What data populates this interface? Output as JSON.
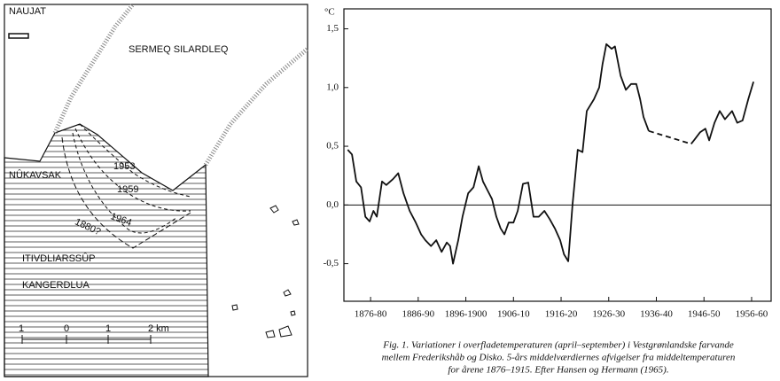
{
  "map": {
    "place_names": [
      "NAUJAT",
      "SERMEQ SILARDLEQ",
      "NÛKAVSAK",
      "ITIVDLIARSSÛP",
      "KANGERDLUA"
    ],
    "front_years": [
      "1953",
      "1959",
      "1964",
      "1880?"
    ],
    "scale_labels": [
      "1",
      "0",
      "1",
      "2 km"
    ]
  },
  "chart_data": {
    "type": "line",
    "y_label": "°C",
    "xlim": [
      1872.4,
      1962.1
    ],
    "ylim": [
      -0.82,
      1.67
    ],
    "xticks": [
      {
        "value": 1878,
        "label": "1876-80"
      },
      {
        "value": 1888,
        "label": "1886-90"
      },
      {
        "value": 1898,
        "label": "1896-1900"
      },
      {
        "value": 1908,
        "label": "1906-10"
      },
      {
        "value": 1918,
        "label": "1916-20"
      },
      {
        "value": 1928,
        "label": "1926-30"
      },
      {
        "value": 1938,
        "label": "1936-40"
      },
      {
        "value": 1948,
        "label": "1946-50"
      },
      {
        "value": 1958,
        "label": "1956-60"
      }
    ],
    "yticks": [
      {
        "value": 1.5,
        "label": "1,5"
      },
      {
        "value": 1.0,
        "label": "1,0"
      },
      {
        "value": 0.5,
        "label": "0,5"
      },
      {
        "value": 0.0,
        "label": "0,0"
      },
      {
        "value": -0.5,
        "label": "-0,5"
      }
    ],
    "reference_line": 0,
    "series": [
      {
        "color": "#111111",
        "style": "solid",
        "x": [
          1873.2,
          1874.1,
          1875.0,
          1876.0,
          1876.9,
          1877.8,
          1878.6,
          1879.3,
          1880.4,
          1881.3,
          1882.7,
          1883.8,
          1884.9,
          1886.2,
          1887.5,
          1888.6,
          1889.5,
          1890.7,
          1891.8,
          1892.9,
          1894.0,
          1894.7,
          1895.3,
          1896.4,
          1897.3,
          1898.5,
          1899.6,
          1900.7,
          1901.6,
          1902.6,
          1903.5,
          1904.4,
          1905.3,
          1906.1,
          1907.0,
          1908.0,
          1908.9,
          1910.0,
          1911.1,
          1912.2,
          1913.3,
          1914.5,
          1915.6,
          1916.7,
          1917.8,
          1918.6,
          1919.5,
          1920.4,
          1921.5,
          1922.5,
          1923.4,
          1924.9,
          1926.0,
          1926.7,
          1927.5,
          1928.6,
          1929.3,
          1930.5,
          1931.6,
          1932.7,
          1933.8,
          1934.6,
          1935.3,
          1936.4
        ],
        "values": [
          0.47,
          0.43,
          0.2,
          0.15,
          -0.1,
          -0.14,
          -0.05,
          -0.1,
          0.2,
          0.17,
          0.22,
          0.27,
          0.1,
          -0.05,
          -0.15,
          -0.25,
          -0.3,
          -0.35,
          -0.3,
          -0.4,
          -0.32,
          -0.35,
          -0.5,
          -0.3,
          -0.1,
          0.1,
          0.15,
          0.33,
          0.2,
          0.12,
          0.05,
          -0.1,
          -0.2,
          -0.25,
          -0.15,
          -0.15,
          -0.05,
          0.18,
          0.19,
          -0.1,
          -0.1,
          -0.05,
          -0.12,
          -0.2,
          -0.3,
          -0.42,
          -0.48,
          0.0,
          0.47,
          0.45,
          0.8,
          0.9,
          1.0,
          1.2,
          1.37,
          1.33,
          1.35,
          1.1,
          0.98,
          1.03,
          1.03,
          0.9,
          0.75,
          0.63
        ]
      },
      {
        "color": "#111111",
        "style": "dashed",
        "x": [
          1936.4,
          1945.3
        ],
        "values": [
          0.63,
          0.52
        ]
      },
      {
        "color": "#111111",
        "style": "solid",
        "x": [
          1945.3,
          1945.9,
          1947.2,
          1948.3,
          1949.1,
          1950.2,
          1951.3,
          1952.4,
          1953.9,
          1955.0,
          1956.1,
          1957.3,
          1958.4
        ],
        "values": [
          0.52,
          0.55,
          0.62,
          0.65,
          0.55,
          0.7,
          0.8,
          0.73,
          0.8,
          0.7,
          0.72,
          0.9,
          1.05
        ]
      }
    ],
    "caption": [
      "Fig. 1. Variationer i overfladetemperaturen (april–september) i Vestgrønlandske farvande",
      "mellem Frederikshåb og Disko. 5-års middelværdiernes afvigelser fra middeltemperaturen",
      "for årene 1876–1915.  Efter Hansen og Hermann (1965)."
    ]
  }
}
